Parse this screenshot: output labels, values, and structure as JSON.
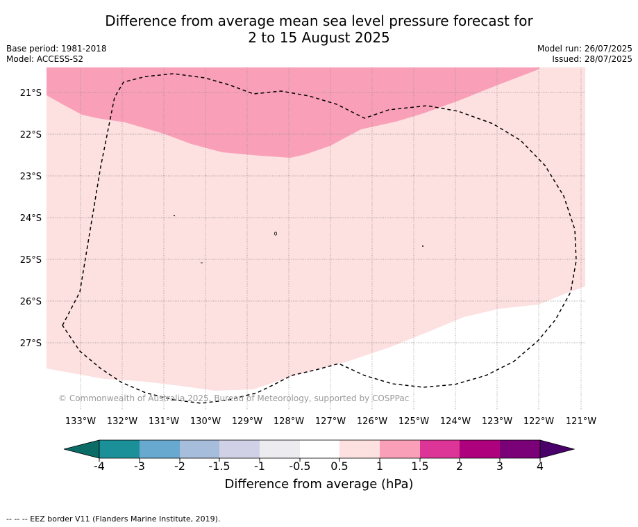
{
  "header": {
    "title_line1": "Difference from average mean sea level pressure forecast for",
    "title_line2": "2 to 15 August 2025",
    "base_period": "Base period: 1981-2018",
    "model": "Model: ACCESS-S2",
    "model_run": "Model run: 26/07/2025",
    "issued": "Issued: 28/07/2025"
  },
  "map": {
    "lat_labels": [
      "21°S",
      "22°S",
      "23°S",
      "24°S",
      "25°S",
      "26°S",
      "27°S"
    ],
    "lon_labels": [
      "133°W",
      "132°W",
      "131°W",
      "130°W",
      "129°W",
      "128°W",
      "127°W",
      "126°W",
      "125°W",
      "124°W",
      "123°W",
      "122°W",
      "121°W"
    ],
    "copyright": "© Commonwealth of Australia 2025, Bureau of Meteorology, supported by COSPPac",
    "colors": {
      "band_0_5_to_1": "#fde0e0",
      "band_1_to_1_5": "#f9a0b8",
      "gridline": "#888888",
      "eez_border": "#000000"
    }
  },
  "colorbar": {
    "title": "Difference from average (hPa)",
    "tick_labels": [
      "-4",
      "-3",
      "-2",
      "-1.5",
      "-1",
      "-0.5",
      "0.5",
      "1",
      "1.5",
      "2",
      "3",
      "4"
    ],
    "colors": [
      "#0b6b66",
      "#1c9099",
      "#67a9cf",
      "#a6bddb",
      "#d0d1e6",
      "#ececf0",
      "#ffffff",
      "#fde0e0",
      "#f9a0b8",
      "#dd3497",
      "#ae017e",
      "#7a0177",
      "#49006a"
    ]
  },
  "legend": {
    "eez_text": "--  --  -- EEZ border V11 (Flanders Marine Institute, 2019)."
  }
}
